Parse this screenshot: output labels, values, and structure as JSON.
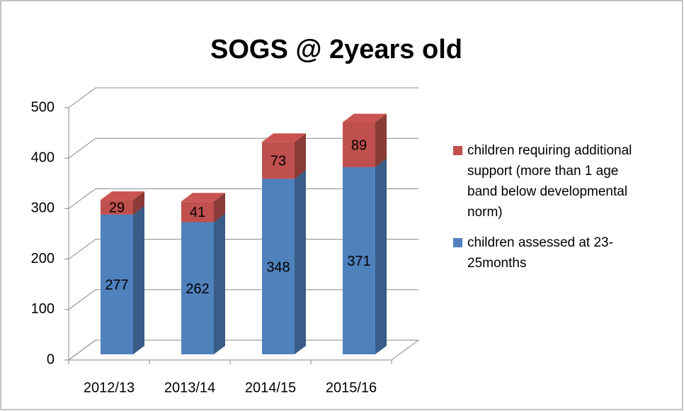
{
  "chart_data": {
    "type": "bar3d_stacked",
    "title": "SOGS @ 2years old",
    "categories": [
      "2012/13",
      "2013/14",
      "2014/15",
      "2015/16"
    ],
    "series": [
      {
        "name": "children assessed at 23-25months",
        "color": "#4f81bd",
        "values": [
          277,
          262,
          348,
          371
        ]
      },
      {
        "name": "children requiring additional support (more than 1 age band below developmental norm)",
        "color": "#c0504d",
        "values": [
          29,
          41,
          73,
          89
        ]
      }
    ],
    "ylim": [
      0,
      500
    ],
    "yticks": [
      0,
      100,
      200,
      300,
      400,
      500
    ],
    "grid": true,
    "legend": "right"
  }
}
